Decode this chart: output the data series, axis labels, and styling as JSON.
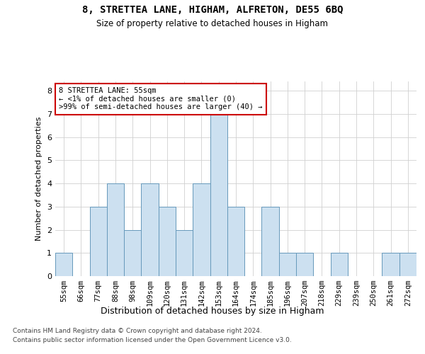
{
  "title_line1": "8, STRETTEA LANE, HIGHAM, ALFRETON, DE55 6BQ",
  "title_line2": "Size of property relative to detached houses in Higham",
  "xlabel": "Distribution of detached houses by size in Higham",
  "ylabel": "Number of detached properties",
  "categories": [
    "55sqm",
    "66sqm",
    "77sqm",
    "88sqm",
    "98sqm",
    "109sqm",
    "120sqm",
    "131sqm",
    "142sqm",
    "153sqm",
    "164sqm",
    "174sqm",
    "185sqm",
    "196sqm",
    "207sqm",
    "218sqm",
    "229sqm",
    "239sqm",
    "250sqm",
    "261sqm",
    "272sqm"
  ],
  "values": [
    1,
    0,
    3,
    4,
    2,
    4,
    3,
    2,
    4,
    7,
    3,
    0,
    3,
    1,
    1,
    0,
    1,
    0,
    0,
    1,
    1
  ],
  "bar_color": "#cce0f0",
  "bar_edge_color": "#6699bb",
  "ylim": [
    0,
    8.4
  ],
  "yticks": [
    0,
    1,
    2,
    3,
    4,
    5,
    6,
    7,
    8
  ],
  "annotation_box_text": "8 STRETTEA LANE: 55sqm\n← <1% of detached houses are smaller (0)\n>99% of semi-detached houses are larger (40) →",
  "annotation_box_color": "#ffffff",
  "annotation_box_edge_color": "#cc0000",
  "footer_line1": "Contains HM Land Registry data © Crown copyright and database right 2024.",
  "footer_line2": "Contains public sector information licensed under the Open Government Licence v3.0.",
  "background_color": "#ffffff",
  "grid_color": "#d0d0d0"
}
